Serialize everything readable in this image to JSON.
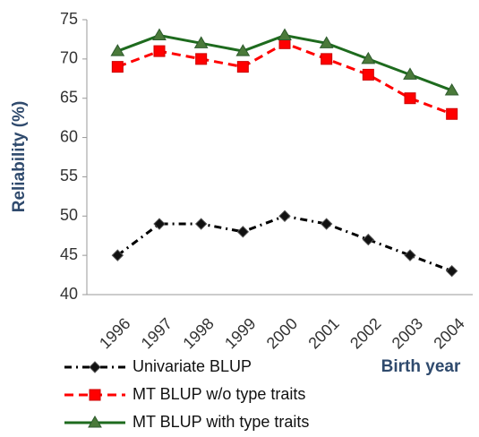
{
  "chart_data": {
    "type": "line",
    "y_label": "Reliability (%)",
    "x_label": "Birth year",
    "categories": [
      "1996",
      "1997",
      "1998",
      "1999",
      "2000",
      "2001",
      "2002",
      "2003",
      "2004"
    ],
    "series": [
      {
        "name": "Univariate BLUP",
        "color": "#000000",
        "marker": "diamond",
        "dash": "dash-dot",
        "values": [
          45,
          49,
          49,
          48,
          50,
          49,
          47,
          45,
          43
        ]
      },
      {
        "name": "MT BLUP w/o type traits",
        "color": "#ff0000",
        "marker": "square",
        "dash": "dashed",
        "values": [
          69,
          71,
          70,
          69,
          72,
          70,
          68,
          65,
          63
        ]
      },
      {
        "name": "MT BLUP with type traits",
        "color": "#1e6b1e",
        "marker": "triangle",
        "dash": "solid",
        "values": [
          71,
          73,
          72,
          71,
          73,
          72,
          70,
          68,
          66
        ]
      }
    ],
    "ylim": [
      40,
      75
    ],
    "yticks": [
      40,
      45,
      50,
      55,
      60,
      65,
      70,
      75
    ],
    "grid": false
  }
}
